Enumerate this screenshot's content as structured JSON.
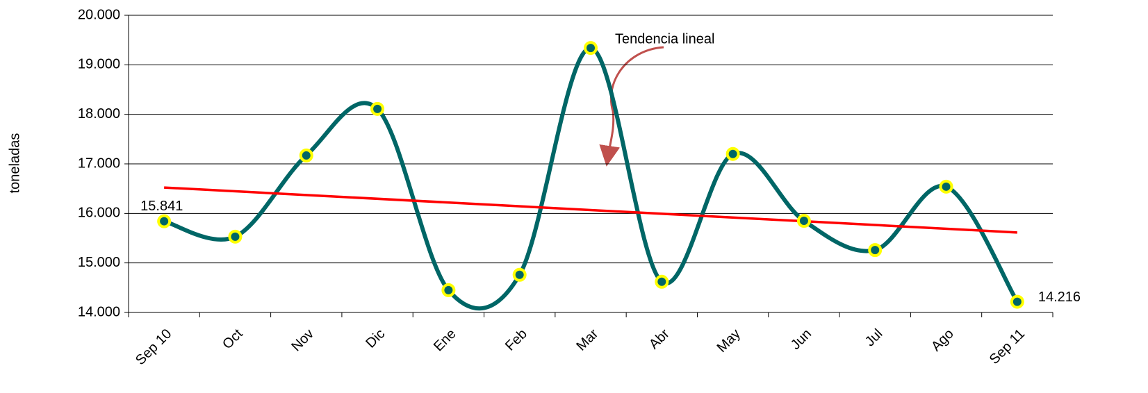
{
  "chart_data": {
    "type": "line",
    "y_label": "toneladas",
    "categories": [
      "Sep 10",
      "Oct",
      "Nov",
      "Dic",
      "Ene",
      "Feb",
      "Mar",
      "Abr",
      "May",
      "Jun",
      "Jul",
      "Ago",
      "Sep 11"
    ],
    "series": [
      {
        "color": "#006666",
        "marker_fill": "#006666",
        "marker_edge": "#ffff00",
        "values": [
          15841,
          15530,
          17170,
          18110,
          14450,
          14760,
          19340,
          14620,
          17200,
          15850,
          15260,
          16540,
          14216
        ],
        "value_labels": [
          "15.841",
          null,
          null,
          null,
          null,
          null,
          null,
          null,
          null,
          null,
          null,
          null,
          "14.216"
        ]
      }
    ],
    "trendline": {
      "label": "Tendencia lineal",
      "color": "#ff0000"
    },
    "ylim": [
      14000,
      20000
    ],
    "yticks": [
      {
        "value": 14000,
        "label": "14.000"
      },
      {
        "value": 15000,
        "label": "15.000"
      },
      {
        "value": 16000,
        "label": "16.000"
      },
      {
        "value": 17000,
        "label": "17.000"
      },
      {
        "value": 18000,
        "label": "18.000"
      },
      {
        "value": 19000,
        "label": "19.000"
      },
      {
        "value": 20000,
        "label": "20.000"
      }
    ],
    "grid": true
  }
}
